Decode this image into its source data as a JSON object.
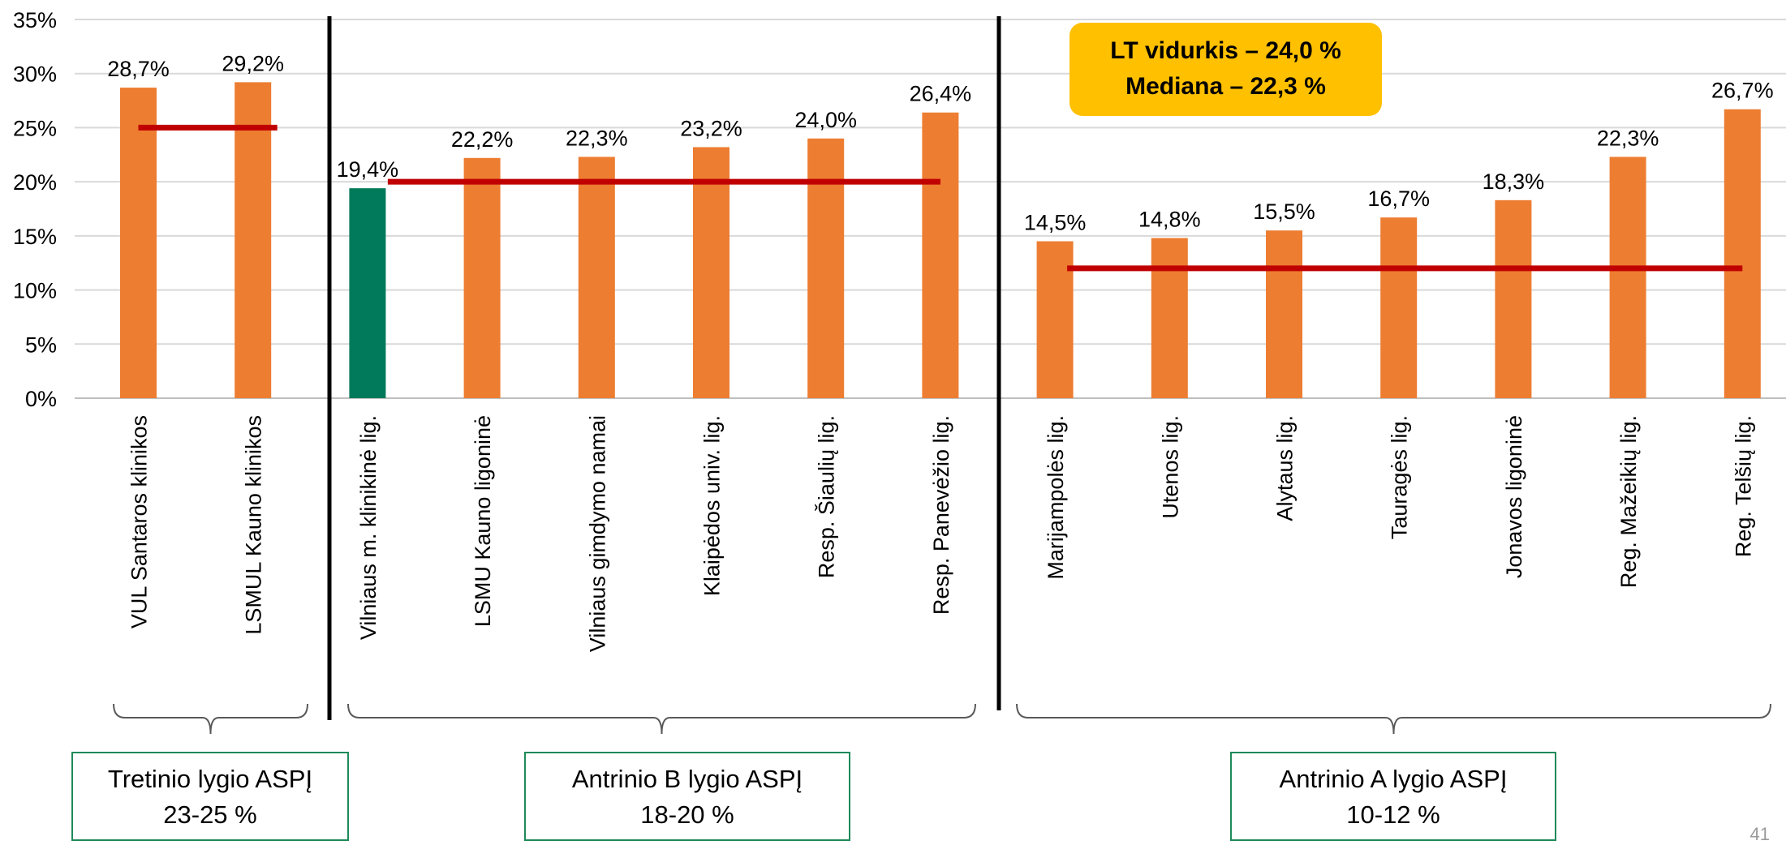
{
  "chart_data": {
    "type": "bar",
    "title": "",
    "xlabel": "",
    "ylabel": "",
    "ylim": [
      0,
      35
    ],
    "y_ticks": [
      "0%",
      "5%",
      "10%",
      "15%",
      "20%",
      "25%",
      "30%",
      "35%"
    ],
    "grid": true,
    "categories": [
      "VUL Santaros klinikos",
      "LSMUL Kauno klinikos",
      "Vilniaus m. klinikinė lig.",
      "LSMU Kauno ligoninė",
      "Vilniaus gimdymo namai",
      "Klaipėdos univ. lig.",
      "Resp. Šiaulių lig.",
      "Resp. Panevėžio lig.",
      "Marijampolės lig.",
      "Utenos lig.",
      "Alytaus lig.",
      "Tauragės lig.",
      "Jonavos ligoninė",
      "Reg. Mažeikių lig.",
      "Reg. Telšių lig."
    ],
    "values": [
      28.7,
      29.2,
      19.4,
      22.2,
      22.3,
      23.2,
      24.0,
      26.4,
      14.5,
      14.8,
      15.5,
      16.7,
      18.3,
      22.3,
      26.7
    ],
    "value_labels": [
      "28,7%",
      "29,2%",
      "19,4%",
      "22,2%",
      "22,3%",
      "23,2%",
      "24,0%",
      "26,4%",
      "14,5%",
      "14,8%",
      "15,5%",
      "16,7%",
      "18,3%",
      "22,3%",
      "26,7%"
    ],
    "highlighted_index": 2,
    "bar_color": "#ed7d31",
    "highlight_color": "#007a5a",
    "target_line_color": "#c00000",
    "groups": [
      {
        "label": "Tretinio lygio ASPĮ",
        "range": "23-25 %",
        "first": 0,
        "last": 1,
        "target": 25
      },
      {
        "label": "Antrinio B lygio ASPĮ",
        "range": "18-20 %",
        "first": 2,
        "last": 7,
        "target": 20
      },
      {
        "label": "Antrinio A lygio ASPĮ",
        "range": "10-12 %",
        "first": 8,
        "last": 14,
        "target": 12
      }
    ]
  },
  "callout": {
    "line1": "LT vidurkis – 24,0 %",
    "line2": "Mediana – 22,3 %",
    "color": "#ffc000"
  },
  "slide_number": "41"
}
